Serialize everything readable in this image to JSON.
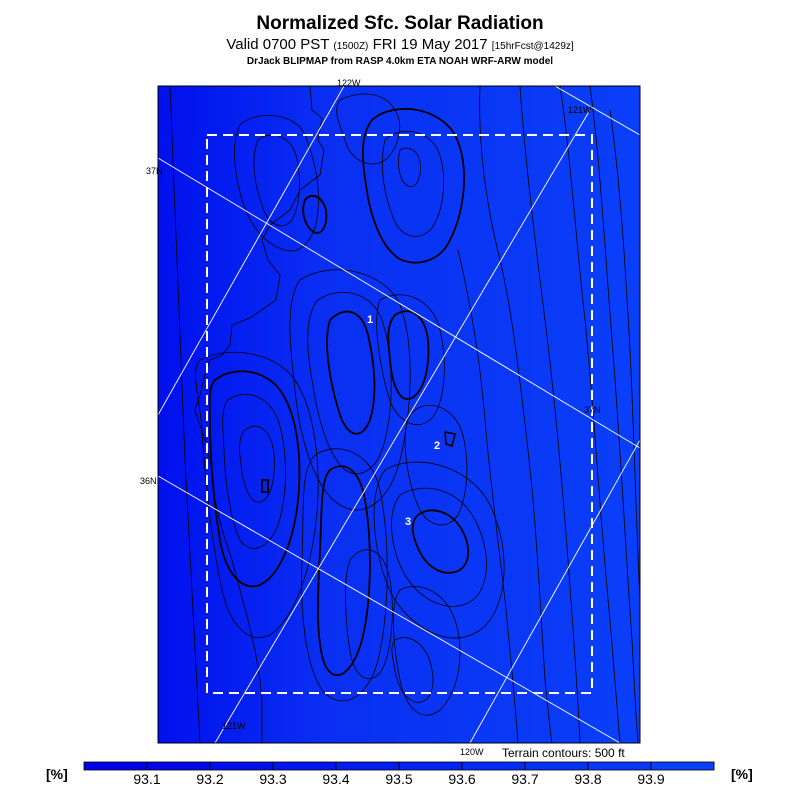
{
  "header": {
    "title": "Normalized Sfc. Solar Radiation",
    "valid_prefix": "Valid 0700 PST",
    "utc_time": "(1500Z)",
    "valid_date": "FRI 19 May 2017",
    "forecast_info": "[15hrFcst@1429z]",
    "credit": "DrJack BLIPMAP from RASP 4.0km ETA NOAH WRF-ARW model"
  },
  "map": {
    "background_color": "#0a33f0",
    "lat_lon_labels": {
      "lon_122w": "122W",
      "lon_121w_top": "121W",
      "lon_121w_bottom": "121W",
      "lon_120w": "120W",
      "lat_37n_left": "37N",
      "lat_37n_right": "37N",
      "lat_36n": "36N"
    },
    "point_markers": [
      "1",
      "2",
      "3"
    ],
    "terrain_note": "Terrain contours: 500 ft"
  },
  "colorbar": {
    "unit_left": "[%]",
    "unit_right": "[%]",
    "ticks": [
      "93.1",
      "93.2",
      "93.3",
      "93.4",
      "93.5",
      "93.6",
      "93.7",
      "93.8",
      "93.9"
    ],
    "colors": [
      "#0000e8",
      "#0008ea",
      "#000fec",
      "#0016ee",
      "#001df0",
      "#0224f2",
      "#042bf4",
      "#0632f6",
      "#0839f8",
      "#0a40fa"
    ]
  }
}
